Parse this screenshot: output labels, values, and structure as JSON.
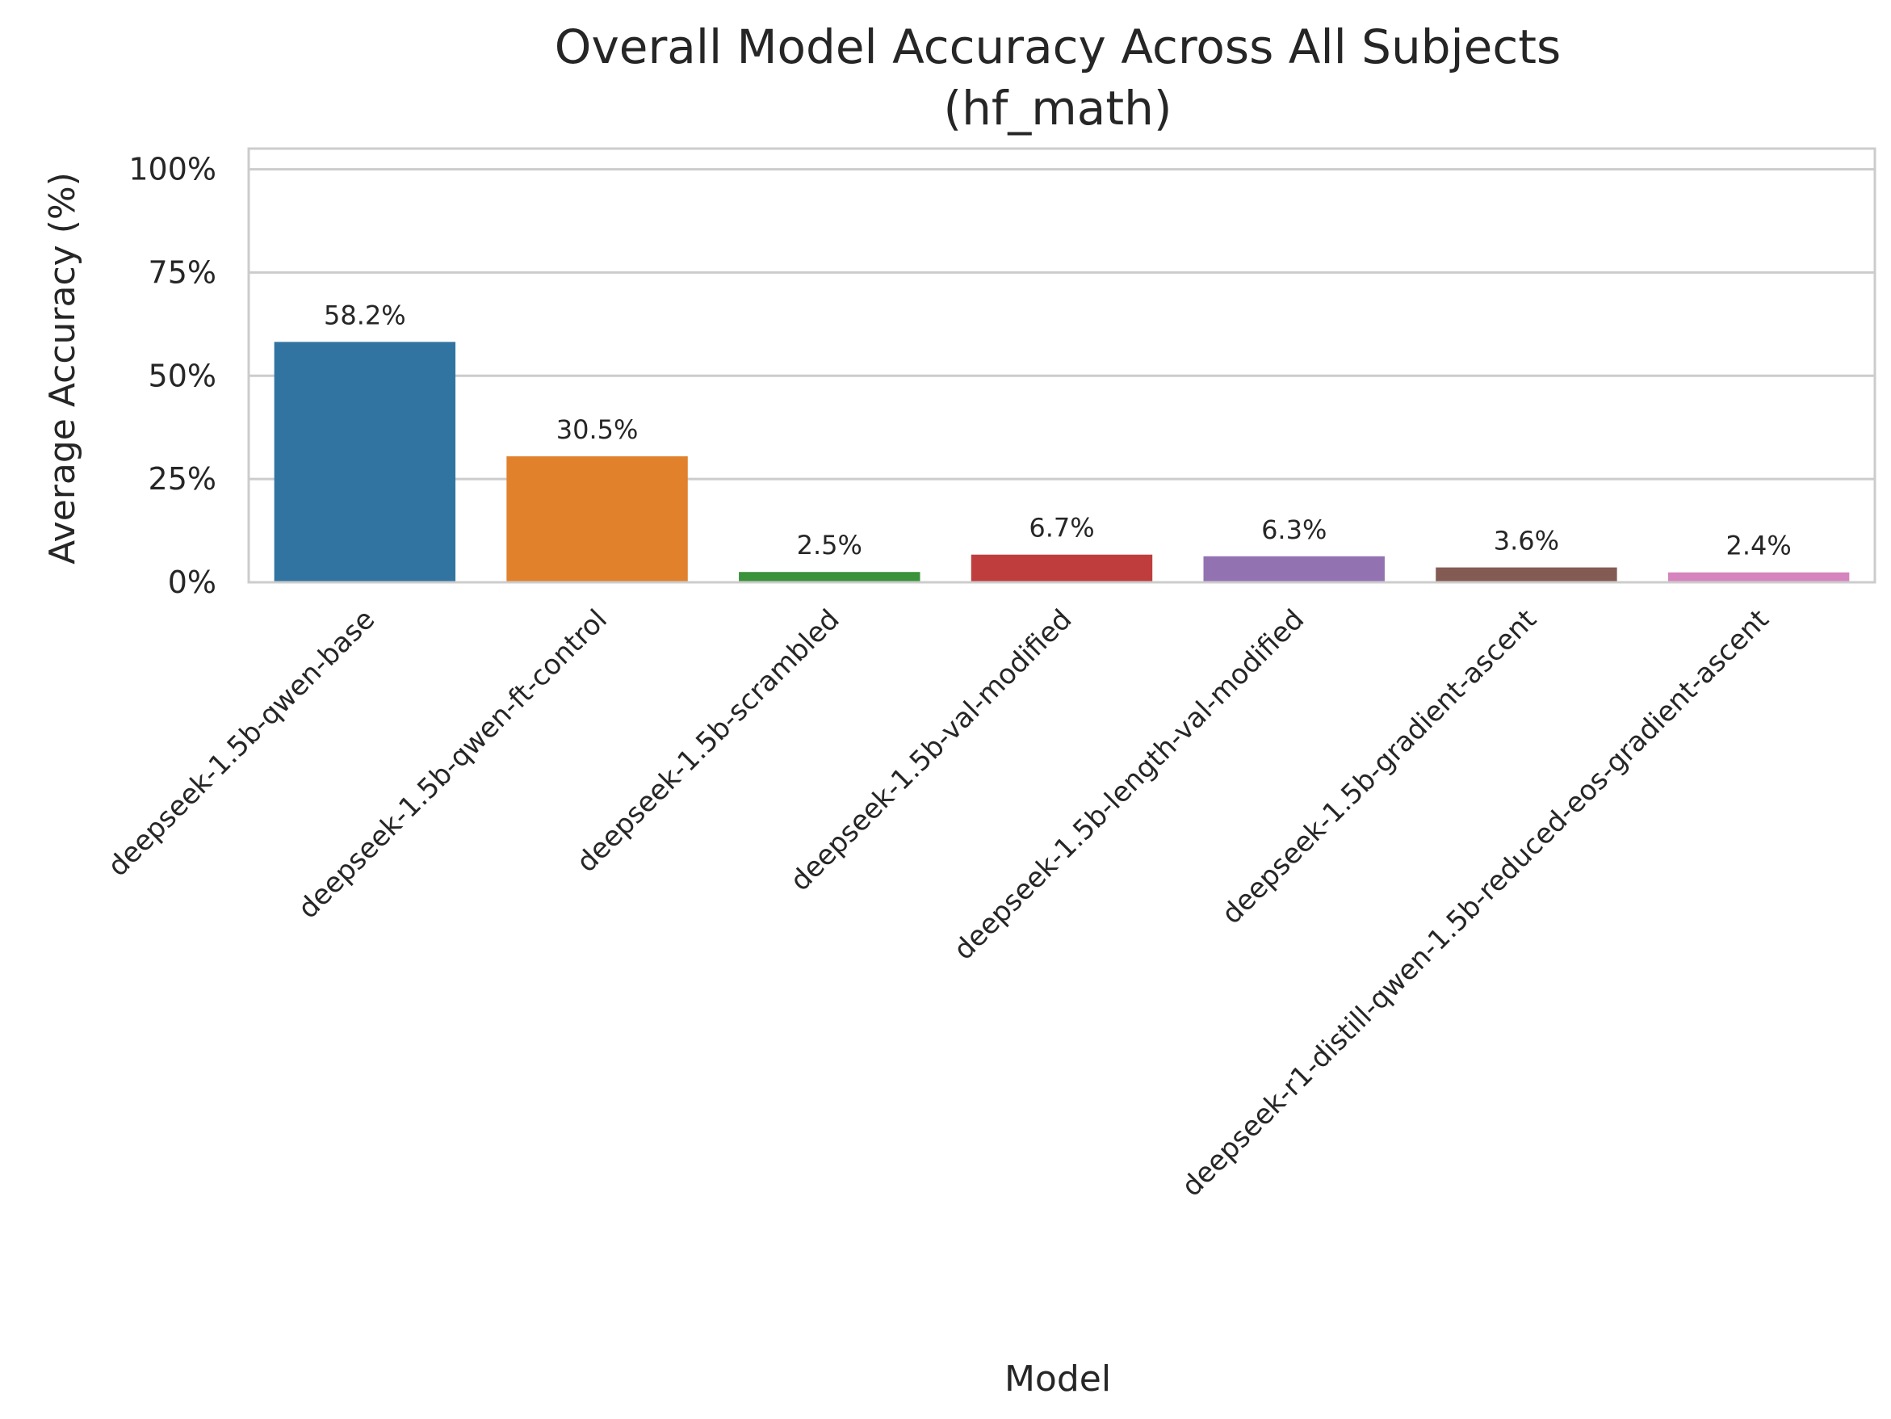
{
  "chart_data": {
    "type": "bar",
    "title_line1": "Overall Model Accuracy Across All Subjects",
    "title_line2": "(hf_math)",
    "xlabel": "Model",
    "ylabel": "Average Accuracy (%)",
    "ylim": [
      0,
      105
    ],
    "yticks": [
      0,
      25,
      50,
      75,
      100
    ],
    "ytick_labels": [
      "0%",
      "25%",
      "50%",
      "75%",
      "100%"
    ],
    "grid": true,
    "categories": [
      "deepseek-1.5b-qwen-base",
      "deepseek-1.5b-qwen-ft-control",
      "deepseek-1.5b-scrambled",
      "deepseek-1.5b-val-modified",
      "deepseek-1.5b-length-val-modified",
      "deepseek-1.5b-gradient-ascent",
      "deepseek-r1-distill-qwen-1.5b-reduced-eos-gradient-ascent"
    ],
    "values": [
      58.2,
      30.5,
      2.5,
      6.7,
      6.3,
      3.6,
      2.4
    ],
    "data_labels": [
      "58.2%",
      "30.5%",
      "2.5%",
      "6.7%",
      "6.3%",
      "3.6%",
      "2.4%"
    ],
    "colors": [
      "#3274a1",
      "#e1812c",
      "#3a923a",
      "#c03d3e",
      "#9372b2",
      "#845b53",
      "#d684bd"
    ]
  }
}
